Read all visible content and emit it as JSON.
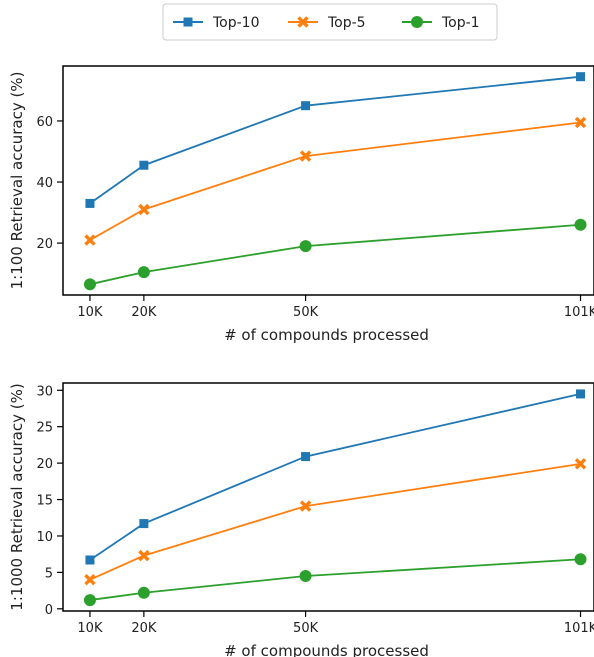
{
  "chart_data": [
    {
      "type": "line",
      "x": [
        10,
        20,
        50,
        101
      ],
      "x_tick_labels": [
        "10K",
        "20K",
        "50K",
        "101K"
      ],
      "xlabel": "# of compounds processed",
      "ylabel": "1:100 Retrieval accuracy (%)",
      "ylim": [
        3,
        78
      ],
      "y_ticks": [
        20,
        40,
        60
      ],
      "grid": false,
      "series": [
        {
          "name": "Top-10",
          "values": [
            33,
            45.5,
            65,
            74.5
          ]
        },
        {
          "name": "Top-5",
          "values": [
            21,
            31,
            48.5,
            59.5
          ]
        },
        {
          "name": "Top-1",
          "values": [
            6.5,
            10.5,
            19,
            26
          ]
        }
      ]
    },
    {
      "type": "line",
      "x": [
        10,
        20,
        50,
        101
      ],
      "x_tick_labels": [
        "10K",
        "20K",
        "50K",
        "101K"
      ],
      "xlabel": "# of compounds processed",
      "ylabel": "1:1000 Retrieval accuracy (%)",
      "ylim": [
        -0.3,
        31
      ],
      "y_ticks": [
        0,
        5,
        10,
        15,
        20,
        25,
        30
      ],
      "grid": false,
      "series": [
        {
          "name": "Top-10",
          "values": [
            6.7,
            11.7,
            20.9,
            29.5
          ]
        },
        {
          "name": "Top-5",
          "values": [
            4,
            7.3,
            14.1,
            19.9
          ]
        },
        {
          "name": "Top-1",
          "values": [
            1.2,
            2.2,
            4.5,
            6.8
          ]
        }
      ]
    }
  ],
  "legend": {
    "placement": "top-center",
    "entries": [
      {
        "name": "Top-10",
        "color": "#1f77b4",
        "marker": "square"
      },
      {
        "name": "Top-5",
        "color": "#ff7f0e",
        "marker": "x"
      },
      {
        "name": "Top-1",
        "color": "#2ca02c",
        "marker": "circle"
      }
    ]
  }
}
